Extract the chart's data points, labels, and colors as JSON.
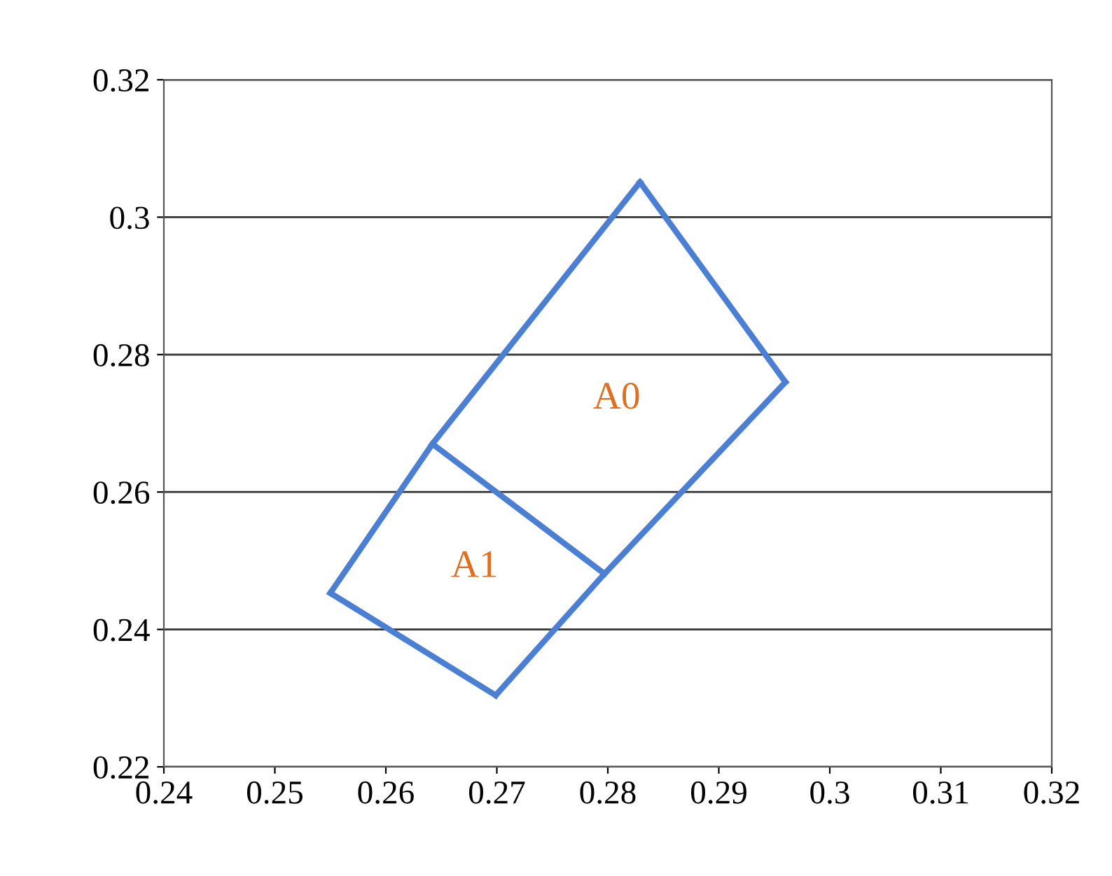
{
  "chart_data": {
    "type": "line",
    "series": [
      {
        "color": "#4a7fd4",
        "x": [
          0.2829,
          0.296
        ],
        "values": [
          0.3051,
          0.276
        ]
      },
      {
        "color": "#4a7fd4",
        "x": [
          0.2699,
          0.2797,
          0.296
        ],
        "values": [
          0.2304,
          0.2481,
          0.276
        ]
      },
      {
        "color": "#4a7fd4",
        "x": [
          0.255,
          0.2699
        ],
        "values": [
          0.2453,
          0.2304
        ]
      },
      {
        "color": "#4a7fd4",
        "x": [
          0.255,
          0.2642,
          0.2829
        ],
        "values": [
          0.2453,
          0.267,
          0.3051
        ]
      },
      {
        "color": "#4a7fd4",
        "x": [
          0.2642,
          0.2797
        ],
        "values": [
          0.267,
          0.2481
        ]
      }
    ],
    "annotations": [
      "A0",
      "A1"
    ],
    "xlim": [
      0.24,
      0.32
    ],
    "ylim": [
      0.22,
      0.32
    ],
    "xticks": [
      0.24,
      0.25,
      0.26,
      0.27,
      0.28,
      0.29,
      0.3,
      0.31,
      0.32
    ],
    "yticks": [
      0.22,
      0.24,
      0.26,
      0.28,
      0.3,
      0.32
    ],
    "grid": "y",
    "marker": "none",
    "line_style": "solid"
  }
}
